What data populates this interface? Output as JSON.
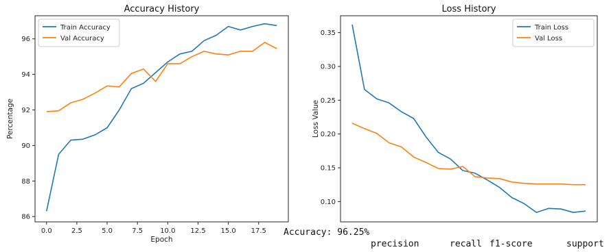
{
  "chart_data": [
    {
      "type": "line",
      "title": "Accuracy History",
      "xlabel": "Epoch",
      "ylabel": "Percentage",
      "xlim": [
        -0.95,
        19.95
      ],
      "ylim": [
        85.7,
        97.3
      ],
      "xticks": [
        0.0,
        2.5,
        5.0,
        7.5,
        10.0,
        12.5,
        15.0,
        17.5
      ],
      "xtick_labels": [
        "0.0",
        "2.5",
        "5.0",
        "7.5",
        "10.0",
        "12.5",
        "15.0",
        "17.5"
      ],
      "yticks": [
        86,
        88,
        90,
        92,
        94,
        96
      ],
      "ytick_labels": [
        "86",
        "88",
        "90",
        "92",
        "94",
        "96"
      ],
      "grid": false,
      "legend": "upper-left",
      "x": [
        0,
        1,
        2,
        3,
        4,
        5,
        6,
        7,
        8,
        9,
        10,
        11,
        12,
        13,
        14,
        15,
        16,
        17,
        18,
        19
      ],
      "series": [
        {
          "name": "Train Accuracy",
          "color": "#1f77b4",
          "values": [
            86.3,
            89.5,
            90.3,
            90.35,
            90.6,
            91.0,
            92.0,
            93.2,
            93.5,
            94.1,
            94.7,
            95.15,
            95.3,
            95.9,
            96.2,
            96.7,
            96.5,
            96.7,
            96.85,
            96.75
          ]
        },
        {
          "name": "Val Accuracy",
          "color": "#ff7f0e",
          "values": [
            91.9,
            91.95,
            92.4,
            92.6,
            92.95,
            93.35,
            93.3,
            94.05,
            94.3,
            93.6,
            94.6,
            94.6,
            95.0,
            95.3,
            95.15,
            95.1,
            95.3,
            95.3,
            95.8,
            95.45
          ]
        }
      ]
    },
    {
      "type": "line",
      "title": "Loss History",
      "xlabel": "",
      "ylabel": "Loss Value",
      "xlim": [
        -0.95,
        19.95
      ],
      "ylim": [
        0.07,
        0.375
      ],
      "xticks": [],
      "yticks": [
        0.1,
        0.15,
        0.2,
        0.25,
        0.3,
        0.35
      ],
      "ytick_labels": [
        "0.10",
        "0.15",
        "0.20",
        "0.25",
        "0.30",
        "0.35"
      ],
      "grid": false,
      "legend": "upper-right",
      "x": [
        0,
        1,
        2,
        3,
        4,
        5,
        6,
        7,
        8,
        9,
        10,
        11,
        12,
        13,
        14,
        15,
        16,
        17,
        18,
        19
      ],
      "series": [
        {
          "name": "Train Loss",
          "color": "#1f77b4",
          "values": [
            0.362,
            0.266,
            0.252,
            0.246,
            0.233,
            0.223,
            0.196,
            0.173,
            0.163,
            0.146,
            0.142,
            0.132,
            0.121,
            0.106,
            0.097,
            0.084,
            0.09,
            0.089,
            0.084,
            0.086
          ]
        },
        {
          "name": "Val Loss",
          "color": "#ff7f0e",
          "values": [
            0.216,
            0.208,
            0.201,
            0.187,
            0.181,
            0.166,
            0.158,
            0.149,
            0.148,
            0.152,
            0.137,
            0.135,
            0.134,
            0.129,
            0.127,
            0.126,
            0.126,
            0.126,
            0.125,
            0.125
          ]
        }
      ]
    }
  ],
  "console": {
    "accuracy_line": "Accuracy: 96.25%",
    "report_header": [
      "precision",
      "recall",
      "f1-score",
      "support"
    ]
  }
}
